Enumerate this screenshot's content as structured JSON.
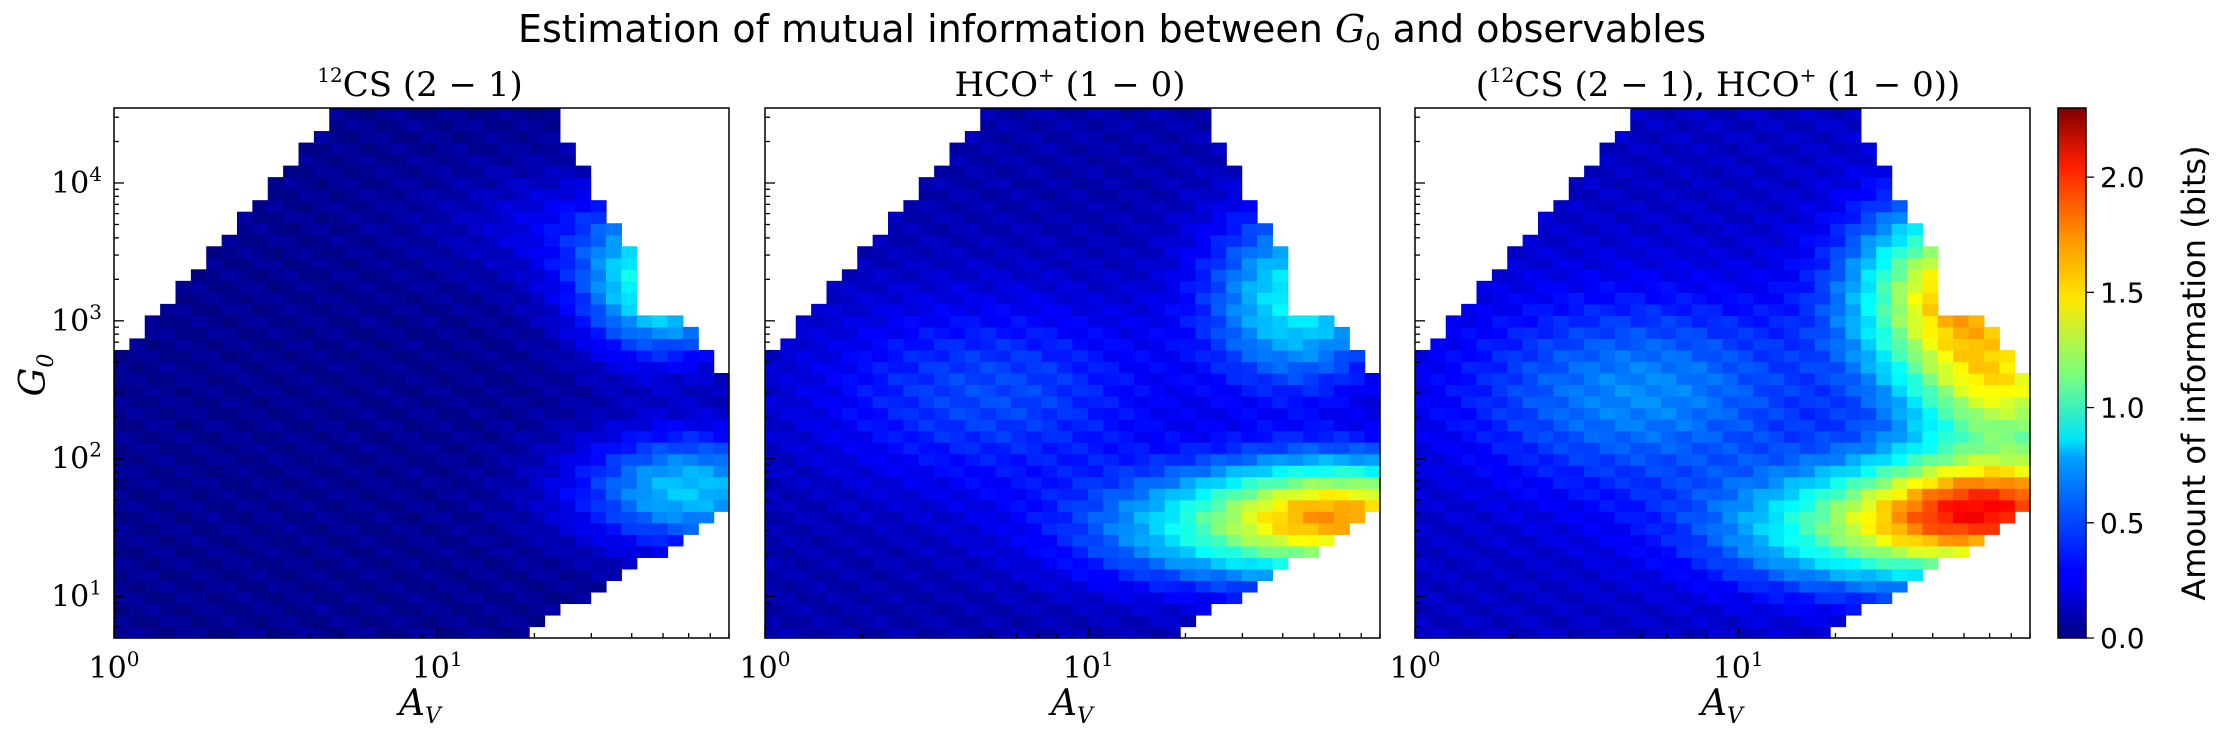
{
  "figure": {
    "suptitle_pre": "Estimation of mutual information between ",
    "suptitle_var": "G",
    "suptitle_sub": "0",
    "suptitle_post": " and observables"
  },
  "chart_data": [
    {
      "type": "heatmap",
      "title_parts": [
        "",
        "12",
        "CS (2 − 1)"
      ],
      "xlabel": "A",
      "xlabel_sub": "V",
      "ylabel": "G",
      "ylabel_sub": "0",
      "xscale": "log",
      "yscale": "log",
      "xlim": [
        1,
        80
      ],
      "ylim": [
        5,
        35000
      ],
      "xticks": [
        {
          "value": 1,
          "base": "10",
          "exp": "0"
        },
        {
          "value": 10,
          "base": "10",
          "exp": "1"
        }
      ],
      "yticks": [
        {
          "value": 10,
          "base": "10",
          "exp": "1"
        },
        {
          "value": 100,
          "base": "10",
          "exp": "2"
        },
        {
          "value": 1000,
          "base": "10",
          "exp": "3"
        },
        {
          "value": 10000,
          "base": "10",
          "exp": "4"
        }
      ],
      "grid": false,
      "info_regions": [
        {
          "av": 50,
          "g0": 1800,
          "bits": 0.9,
          "spread_av": 0.18,
          "spread_g0": 0.35
        },
        {
          "av": 60,
          "g0": 60,
          "bits": 0.7,
          "spread_av": 0.25,
          "spread_g0": 0.3
        },
        {
          "av": 28,
          "g0": 5000,
          "bits": 0.2,
          "spread_av": 0.3,
          "spread_g0": 0.3
        }
      ],
      "base_bits": 0.04
    },
    {
      "type": "heatmap",
      "title_parts": [
        "HCO",
        "+",
        " (1 − 0)"
      ],
      "xlabel": "A",
      "xlabel_sub": "V",
      "xscale": "log",
      "yscale": "log",
      "xlim": [
        1,
        80
      ],
      "ylim": [
        5,
        35000
      ],
      "xticks": [
        {
          "value": 1,
          "base": "10",
          "exp": "0"
        },
        {
          "value": 10,
          "base": "10",
          "exp": "1"
        }
      ],
      "yticks": [],
      "grid": false,
      "info_regions": [
        {
          "av": 45,
          "g0": 1500,
          "bits": 0.75,
          "spread_av": 0.2,
          "spread_g0": 0.45
        },
        {
          "av": 65,
          "g0": 40,
          "bits": 1.3,
          "spread_av": 0.3,
          "spread_g0": 0.28
        },
        {
          "av": 25,
          "g0": 30,
          "bits": 0.55,
          "spread_av": 0.35,
          "spread_g0": 0.3
        },
        {
          "av": 5,
          "g0": 300,
          "bits": 0.35,
          "spread_av": 0.4,
          "spread_g0": 0.5
        }
      ],
      "base_bits": 0.1
    },
    {
      "type": "heatmap",
      "title_parts": [
        "(",
        "12",
        "CS (2 − 1), HCO",
        "+",
        " (1 − 0))"
      ],
      "xlabel": "A",
      "xlabel_sub": "V",
      "xscale": "log",
      "yscale": "log",
      "xlim": [
        1,
        80
      ],
      "ylim": [
        5,
        35000
      ],
      "xticks": [
        {
          "value": 1,
          "base": "10",
          "exp": "0"
        },
        {
          "value": 10,
          "base": "10",
          "exp": "1"
        }
      ],
      "yticks": [],
      "grid": false,
      "info_regions": [
        {
          "av": 48,
          "g0": 1500,
          "bits": 1.45,
          "spread_av": 0.22,
          "spread_g0": 0.45
        },
        {
          "av": 65,
          "g0": 45,
          "bits": 1.5,
          "spread_av": 0.3,
          "spread_g0": 0.3
        },
        {
          "av": 25,
          "g0": 30,
          "bits": 0.75,
          "spread_av": 0.35,
          "spread_g0": 0.3
        },
        {
          "av": 5,
          "g0": 300,
          "bits": 0.45,
          "spread_av": 0.4,
          "spread_g0": 0.5
        },
        {
          "av": 70,
          "g0": 300,
          "bits": 0.9,
          "spread_av": 0.2,
          "spread_g0": 0.3
        }
      ],
      "base_bits": 0.15
    }
  ],
  "colorbar": {
    "label": "Amount of information (bits)",
    "min": 0.0,
    "max": 2.3,
    "ticks": [
      "0.0",
      "0.5",
      "1.0",
      "1.5",
      "2.0"
    ],
    "colormap": "jet"
  }
}
